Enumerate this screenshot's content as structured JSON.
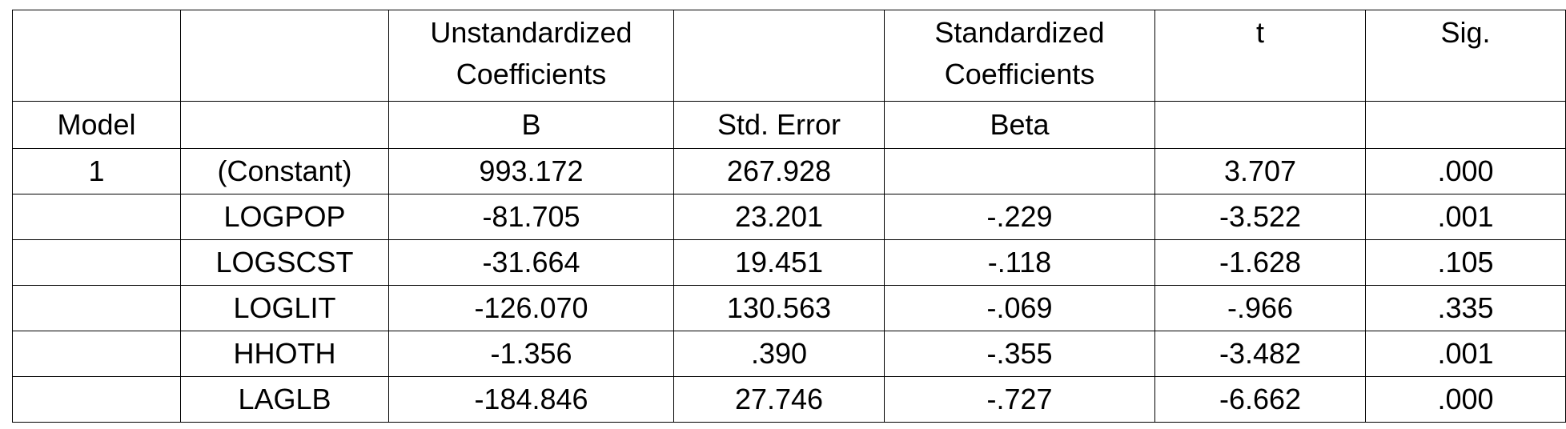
{
  "table": {
    "header": {
      "unstandardized": "Unstandardized Coefficients",
      "standardized": "Standardized Coefficients",
      "t": "t",
      "sig": "Sig.",
      "model": "Model",
      "b": "B",
      "std_error": "Std. Error",
      "beta": "Beta"
    },
    "rows": [
      {
        "model": "1",
        "predictor": "(Constant)",
        "b": "993.172",
        "std_error": "267.928",
        "t": "3.707",
        "sig": ".000"
      },
      {
        "predictor": "LOGPOP",
        "b": "-81.705",
        "std_error": "23.201",
        "beta": "-.229",
        "t": "-3.522",
        "sig": ".001"
      },
      {
        "predictor": "LOGSCST",
        "b": "-31.664",
        "std_error": "19.451",
        "beta": "-.118",
        "t": "-1.628",
        "sig": ".105"
      },
      {
        "predictor": "LOGLIT",
        "b": "-126.070",
        "std_error": "130.563",
        "beta": "-.069",
        "t": "-.966",
        "sig": ".335"
      },
      {
        "predictor": "HHOTH",
        "b": "-1.356",
        "std_error": ".390",
        "beta": "-.355",
        "t": "-3.482",
        "sig": ".001"
      },
      {
        "predictor": "LAGLB",
        "b": "-184.846",
        "std_error": "27.746",
        "beta": "-.727",
        "t": "-6.662",
        "sig": ".000"
      }
    ]
  }
}
